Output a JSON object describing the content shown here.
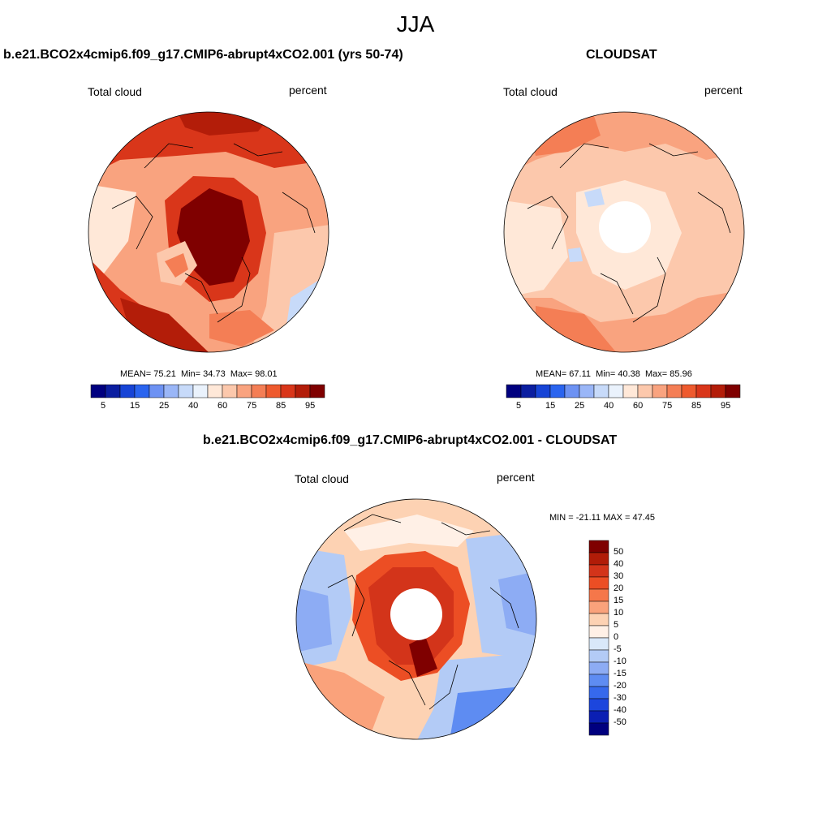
{
  "figure": {
    "title": "JJA"
  },
  "palettes": {
    "abs": [
      "#00007f",
      "#0b1ea0",
      "#1744d6",
      "#2a64ef",
      "#6d92f3",
      "#9ab6f7",
      "#c7daf9",
      "#eaf2fc",
      "#ffe8d8",
      "#fcc8ac",
      "#f9a37f",
      "#f47e55",
      "#ee5a2e",
      "#d9361a",
      "#b31d09",
      "#7f0000"
    ],
    "diff": [
      "#7f0000",
      "#b11c08",
      "#d3341a",
      "#ec4e24",
      "#f5774a",
      "#faa27b",
      "#fdd2b3",
      "#fff0e6",
      "#d9e8f9",
      "#b3cbf6",
      "#8dacf4",
      "#5e8cf2",
      "#3669ec",
      "#1c46dd",
      "#0b1fb3",
      "#00007f"
    ]
  },
  "panels": [
    {
      "id": "model",
      "title": "b.e21.BCO2x4cmip6.f09_g17.CMIP6-abrupt4xCO2.001 (yrs 50-74)",
      "variable": "Total cloud",
      "units": "percent",
      "stats": {
        "mean_label": "MEAN=",
        "mean": "75.21",
        "min_label": "Min=",
        "min": "34.73",
        "max_label": "Max=",
        "max": "98.01"
      },
      "colorbar_ticks": [
        "5",
        "15",
        "25",
        "40",
        "60",
        "75",
        "85",
        "95"
      ]
    },
    {
      "id": "obs",
      "title": "CLOUDSAT",
      "variable": "Total cloud",
      "units": "percent",
      "stats": {
        "mean_label": "MEAN=",
        "mean": "67.11",
        "min_label": "Min=",
        "min": "40.38",
        "max_label": "Max=",
        "max": "85.96"
      },
      "colorbar_ticks": [
        "5",
        "15",
        "25",
        "40",
        "60",
        "75",
        "85",
        "95"
      ]
    },
    {
      "id": "diff",
      "title": "b.e21.BCO2x4cmip6.f09_g17.CMIP6-abrupt4xCO2.001 - CLOUDSAT",
      "variable": "Total cloud",
      "units": "percent",
      "stats_text": "MIN = -21.11 MAX =  47.45",
      "colorbar_ticks": [
        "50",
        "40",
        "30",
        "20",
        "15",
        "10",
        "5",
        "0",
        "-5",
        "-10",
        "-15",
        "-20",
        "-30",
        "-40",
        "-50"
      ]
    }
  ]
}
